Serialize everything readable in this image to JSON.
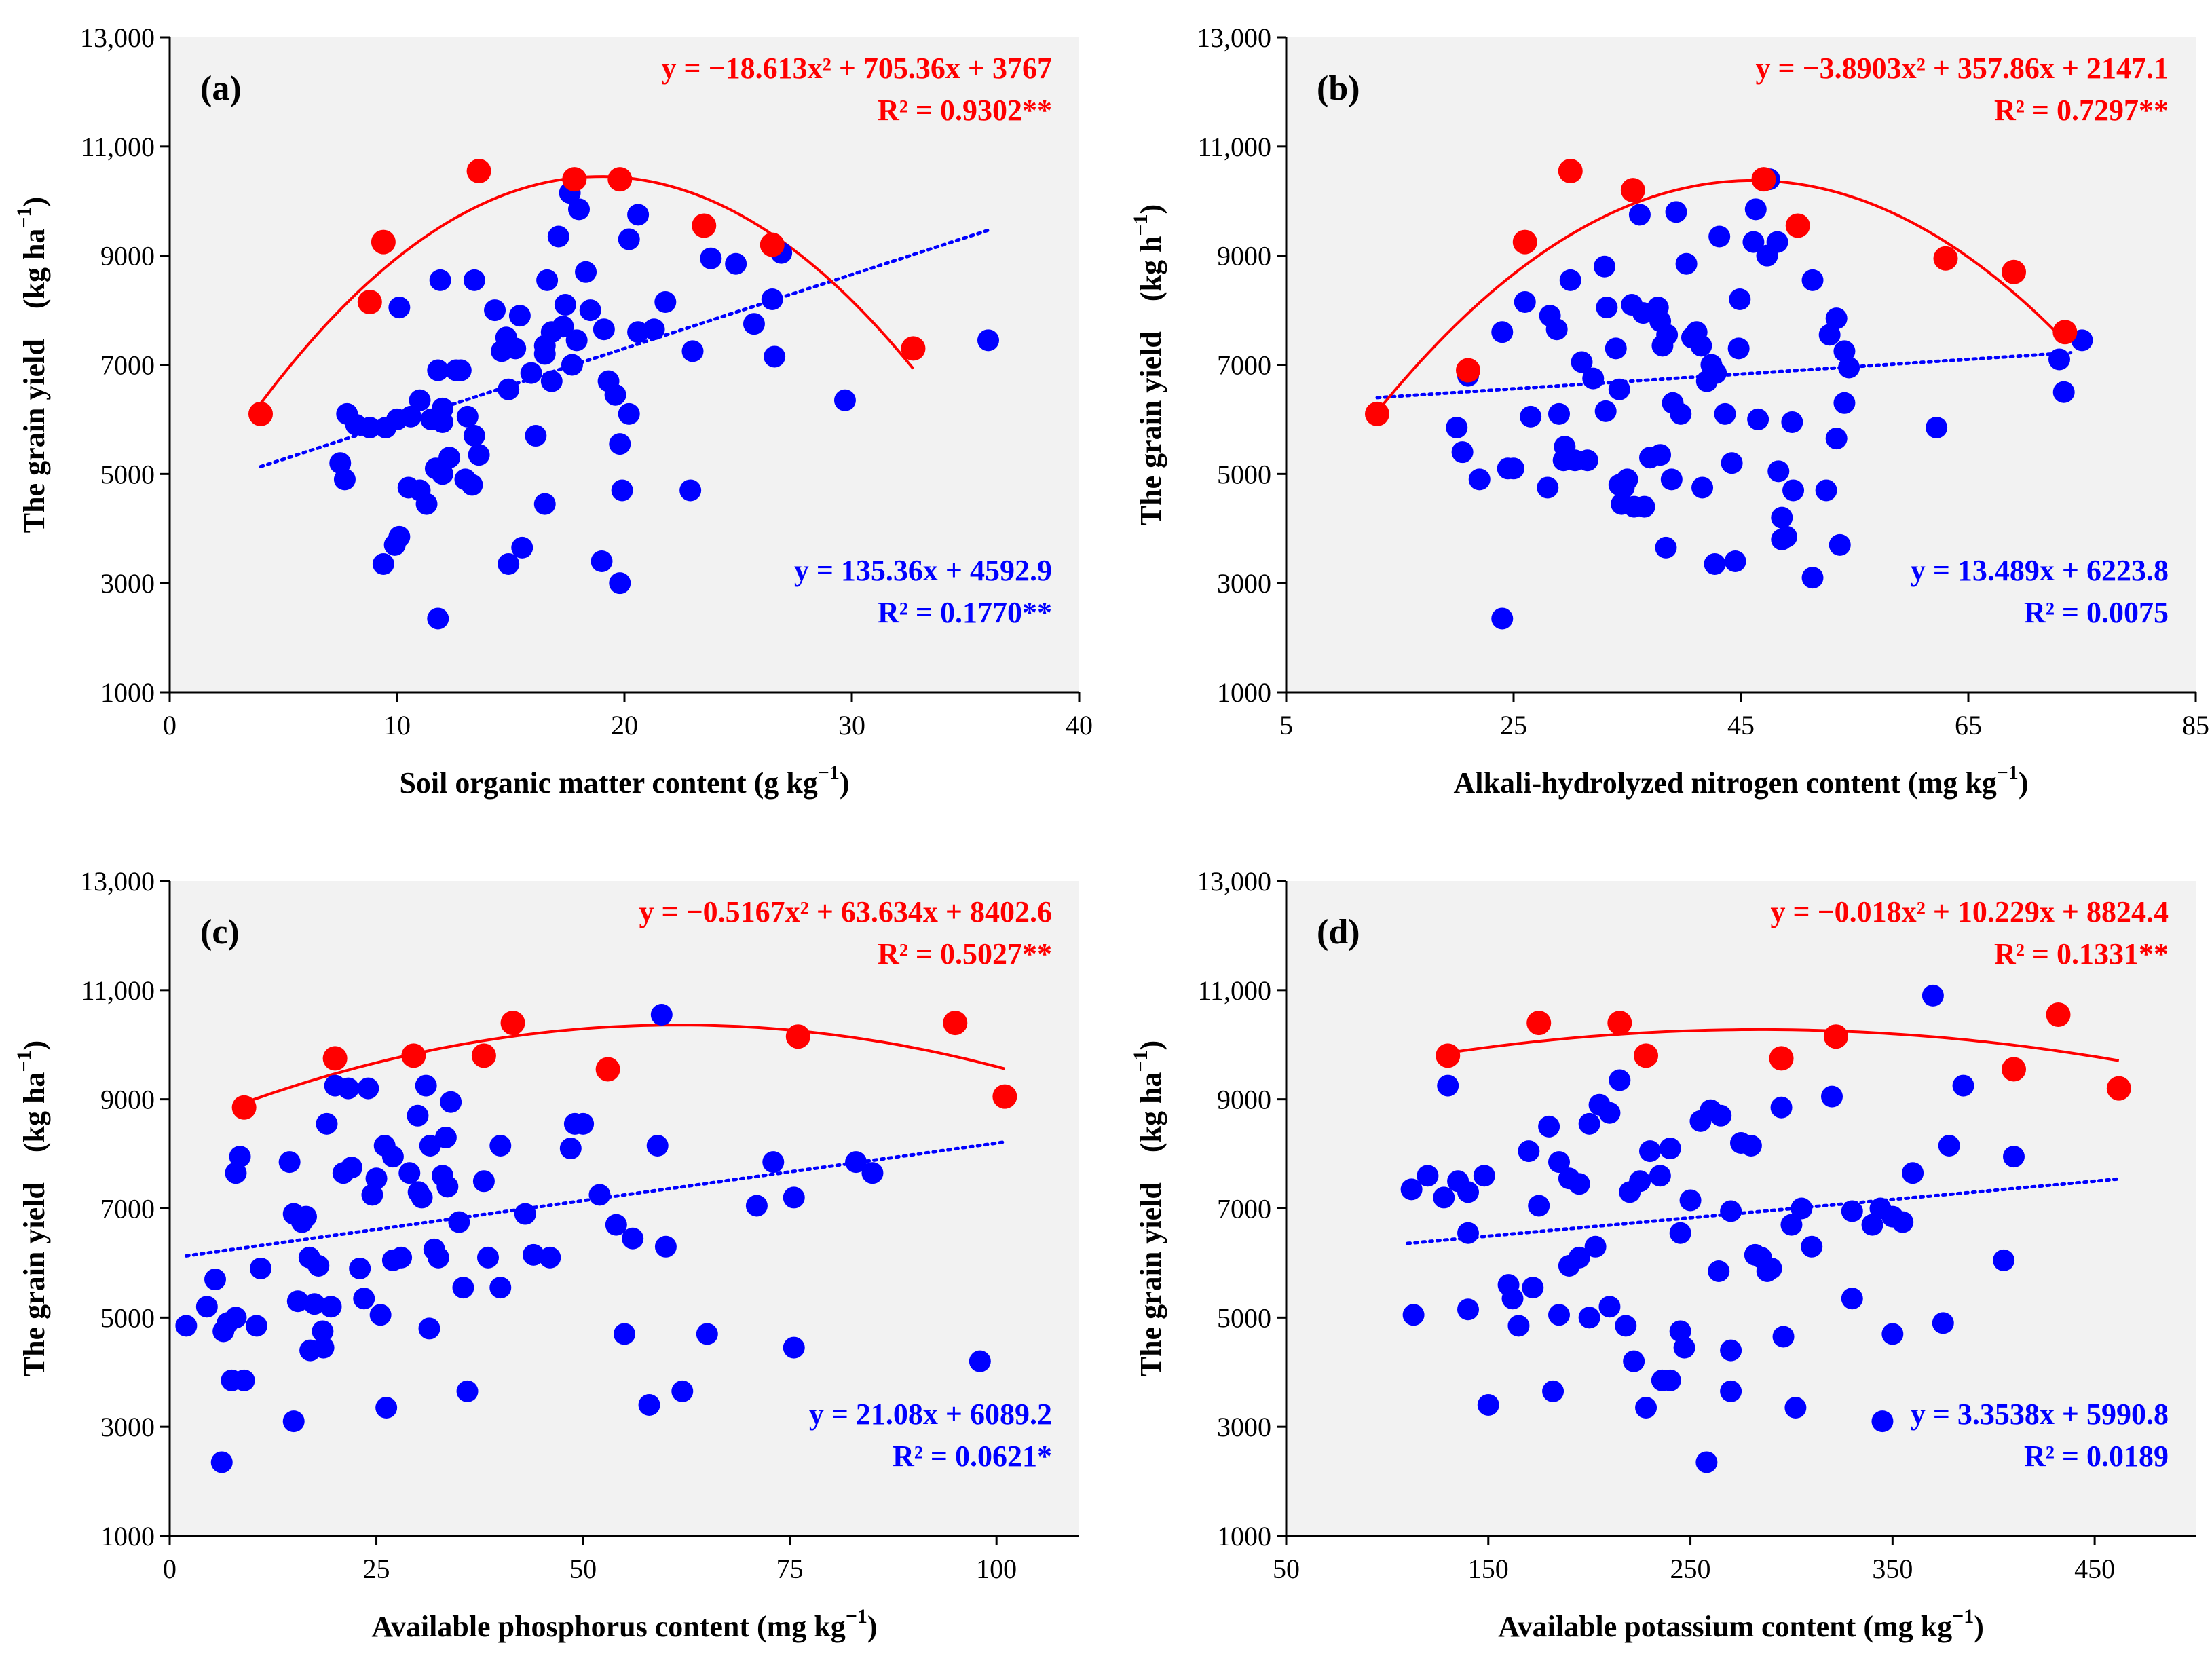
{
  "colors": {
    "quadratic": "#ff0000",
    "linear": "#0000ff",
    "panel_bg": "#f2f2f2"
  },
  "chart_data": [
    {
      "type": "scatter",
      "panel": "(a)",
      "xlabel_main": "Soil organic matter content (g kg",
      "xlabel_sup": "−1",
      "xlabel_end": ")",
      "ylabel_main": "The grain yield　(kg ha",
      "ylabel_sup": "−1",
      "ylabel_end": ")",
      "xlim": [
        0,
        40
      ],
      "ylim": [
        1000,
        13000
      ],
      "xticks": [
        0,
        10,
        20,
        30,
        40
      ],
      "xtick_labels": [
        "0",
        "10",
        "20",
        "30",
        "40"
      ],
      "yticks": [
        1000,
        3000,
        5000,
        7000,
        9000,
        11000,
        13000
      ],
      "ytick_labels": [
        "1000",
        "3000",
        "5000",
        "7000",
        "9000",
        "11,000",
        "13,000"
      ],
      "quad_eq": "y = −18.613x² + 705.36x + 3767",
      "quad_r2": "R² = 0.9302**",
      "lin_eq": "y = 135.36x + 4592.9",
      "lin_r2": "R² = 0.1770**",
      "quad_coef": [
        -18.613,
        705.36,
        3767
      ],
      "quad_range": [
        4,
        32.7
      ],
      "lin_coef": [
        135.36,
        4592.9
      ],
      "lin_range": [
        4,
        36
      ],
      "series_max": {
        "x": [
          4,
          8.8,
          9.4,
          13.6,
          17.8,
          19.8,
          23.5,
          26.5,
          32.7
        ],
        "y": [
          6100,
          8150,
          9250,
          10550,
          10400,
          10400,
          9550,
          9200,
          7300
        ]
      },
      "series_all": {
        "x": [
          7.8,
          8.2,
          8.8,
          9.5,
          10.0,
          10.6,
          11.0,
          11.5,
          12.0,
          7.5,
          7.7,
          9.4,
          9.9,
          10.1,
          10.5,
          11.0,
          11.3,
          11.7,
          12.0,
          12.3,
          12.6,
          12.8,
          13.1,
          13.4,
          13.6,
          11.9,
          11.8,
          12.0,
          13.0,
          13.3,
          14.3,
          14.6,
          14.8,
          14.9,
          15.2,
          15.4,
          15.9,
          16.1,
          16.5,
          16.6,
          16.8,
          17.1,
          17.3,
          17.4,
          17.7,
          17.9,
          18.3,
          18.5,
          19.1,
          19.3,
          19.6,
          19.8,
          19.9,
          20.2,
          20.6,
          14.9,
          15.5,
          16.5,
          19.0,
          19.8,
          16.8,
          20.6,
          21.3,
          21.8,
          23.0,
          23.8,
          24.9,
          25.7,
          26.5,
          26.6,
          26.9,
          29.7,
          36.0,
          22.9,
          11.8,
          18.0,
          17.6,
          16.5,
          20.2,
          10.1,
          13.4
        ],
        "y": [
          6100,
          5900,
          5850,
          5850,
          6000,
          6050,
          6350,
          6000,
          6200,
          5200,
          4900,
          3350,
          3700,
          3850,
          4750,
          4700,
          4450,
          5100,
          5000,
          5300,
          6900,
          6900,
          6050,
          5700,
          5350,
          8550,
          6900,
          5950,
          4900,
          4800,
          8000,
          7250,
          7500,
          6550,
          7300,
          7900,
          6850,
          5700,
          7350,
          8550,
          7600,
          9350,
          7700,
          8100,
          7000,
          7450,
          8700,
          8000,
          7650,
          6700,
          6450,
          5550,
          4700,
          9300,
          9750,
          3350,
          3650,
          4450,
          3400,
          3000,
          6700,
          7600,
          7650,
          8150,
          7250,
          8950,
          8850,
          7750,
          8200,
          7150,
          9050,
          6350,
          7450,
          4700,
          2350,
          9850,
          10150,
          7200,
          6100,
          8050,
          8550
        ]
      }
    },
    {
      "type": "scatter",
      "panel": "(b)",
      "xlabel_main": "Alkali-hydrolyzed nitrogen content (mg kg",
      "xlabel_sup": "−1",
      "xlabel_end": ")",
      "ylabel_main": "The grain yield　(kg h",
      "ylabel_sup": "−1",
      "ylabel_end": ")",
      "xlim": [
        5,
        85
      ],
      "ylim": [
        1000,
        13000
      ],
      "xticks": [
        5,
        25,
        45,
        65,
        85
      ],
      "xtick_labels": [
        "5",
        "25",
        "45",
        "65",
        "85"
      ],
      "yticks": [
        1000,
        3000,
        5000,
        7000,
        9000,
        11000,
        13000
      ],
      "ytick_labels": [
        "1000",
        "3000",
        "5000",
        "7000",
        "9000",
        "11,000",
        "13,000"
      ],
      "quad_eq": "y = −3.8903x² + 357.86x + 2147.1",
      "quad_r2": "R² = 0.7297**",
      "lin_eq": "y = 13.489x + 6223.8",
      "lin_r2": "R² = 0.0075",
      "quad_coef": [
        -3.8903,
        357.86,
        2147.1
      ],
      "quad_range": [
        13,
        73.5
      ],
      "lin_coef": [
        13.489,
        6223.8
      ],
      "lin_range": [
        13,
        74
      ],
      "series_max": {
        "x": [
          13,
          21,
          26,
          30,
          35.5,
          47,
          50,
          63,
          69,
          73.5
        ],
        "y": [
          6100,
          6900,
          9250,
          10550,
          10200,
          10400,
          9550,
          8950,
          8700,
          7600
        ]
      },
      "series_all": {
        "x": [
          21,
          25,
          26,
          28,
          29,
          29.5,
          30,
          31,
          31.5,
          32,
          33,
          33.2,
          34,
          34.3,
          34.7,
          35.4,
          35.6,
          36.1,
          36.4,
          37.0,
          37.7,
          37.9,
          38.1,
          38.5,
          39.0,
          39.3,
          39.7,
          40.2,
          40.7,
          41.1,
          41.5,
          42.0,
          42.4,
          42.8,
          43.1,
          43.6,
          44.2,
          44.8,
          46.1,
          46.5,
          47.3,
          48.3,
          48.6,
          49.0,
          49.5,
          51.3,
          52.5,
          53.4,
          54.1,
          54.5,
          62.2,
          73.0,
          73.4,
          75,
          20,
          20.5,
          22,
          24,
          24.5,
          26.5,
          28.2,
          28.8,
          29.4,
          30.4,
          33.1,
          34.3,
          34.5,
          35.0,
          36.5,
          37.9,
          38.4,
          38.9,
          41.6,
          42.7,
          44.5,
          44.9,
          46.3,
          47.5,
          48.2,
          48.6,
          49.6,
          51.3,
          52.8,
          53.4,
          53.7,
          54.1,
          24.0
        ],
        "y": [
          6800,
          5100,
          8150,
          4750,
          6100,
          5500,
          8550,
          7050,
          5250,
          6750,
          8800,
          8050,
          7300,
          6550,
          4750,
          8100,
          4400,
          9750,
          7950,
          5300,
          8050,
          7800,
          7350,
          7550,
          6300,
          9800,
          6100,
          8850,
          7500,
          7600,
          7350,
          6700,
          7000,
          6850,
          9350,
          6100,
          5200,
          7300,
          9250,
          6000,
          9000,
          5050,
          3800,
          3850,
          5950,
          3100,
          4700,
          5650,
          7250,
          6950,
          5850,
          7100,
          6500,
          7450,
          5850,
          5400,
          4900,
          7600,
          5100,
          6050,
          7900,
          7650,
          5250,
          5250,
          6150,
          4800,
          4450,
          4900,
          4400,
          5350,
          3650,
          4900,
          4750,
          3350,
          3400,
          8200,
          9850,
          10400,
          9250,
          4200,
          4700,
          8550,
          7550,
          7850,
          3700,
          6300,
          2350
        ],
        "note": "approx readings"
      }
    },
    {
      "type": "scatter",
      "panel": "(c)",
      "xlabel_main": "Available phosphorus content (mg kg",
      "xlabel_sup": "−1",
      "xlabel_end": ")",
      "ylabel_main": "The grain yield　(kg ha",
      "ylabel_sup": "−1",
      "ylabel_end": ")",
      "xlim": [
        0,
        110
      ],
      "ylim": [
        1000,
        13000
      ],
      "xticks": [
        0,
        25,
        50,
        75,
        100
      ],
      "xtick_labels": [
        "0",
        "25",
        "50",
        "75",
        "100"
      ],
      "yticks": [
        1000,
        3000,
        5000,
        7000,
        9000,
        11000,
        13000
      ],
      "ytick_labels": [
        "1000",
        "3000",
        "5000",
        "7000",
        "9000",
        "11,000",
        "13,000"
      ],
      "quad_eq": "y = −0.5167x² + 63.634x + 8402.6",
      "quad_r2": "R² = 0.5027**",
      "lin_eq": "y = 21.08x + 6089.2",
      "lin_r2": "R² = 0.0621*",
      "quad_coef": [
        -0.5167,
        63.634,
        8402.6
      ],
      "quad_range": [
        9,
        101
      ],
      "lin_coef": [
        21.08,
        6089.2
      ],
      "lin_range": [
        2,
        101
      ],
      "series_max": {
        "x": [
          9,
          20,
          29.5,
          38,
          41.5,
          53,
          76,
          95,
          101
        ],
        "y": [
          8850,
          9750,
          9800,
          9800,
          10400,
          9550,
          10150,
          10400,
          9050
        ]
      },
      "series_all": {
        "x": [
          2,
          4.5,
          5.5,
          6.5,
          7,
          7.5,
          8,
          8.5,
          9,
          10.5,
          11,
          14.5,
          15,
          15.5,
          16,
          16.5,
          17,
          17.5,
          18,
          18.5,
          19,
          19.5,
          20,
          21,
          22,
          23,
          24,
          24.5,
          25,
          25.5,
          26,
          27,
          28,
          29,
          30,
          30.5,
          31,
          31.5,
          32,
          32.5,
          33,
          34,
          35,
          35.5,
          36,
          38,
          38.5,
          40,
          40,
          43,
          44,
          46,
          48.5,
          49,
          50,
          52,
          54,
          55,
          56,
          58,
          59,
          59.5,
          60,
          62,
          65,
          71,
          73,
          75.5,
          75.5,
          83,
          85,
          98,
          6.3,
          8,
          15,
          26.2,
          27,
          31.4,
          23.5,
          30.1,
          33.4,
          33.6,
          16.9,
          21.6,
          18.6
        ],
        "y": [
          4850,
          5200,
          5700,
          4750,
          4900,
          3850,
          5000,
          7950,
          3850,
          4850,
          5900,
          7850,
          6900,
          5300,
          6750,
          6850,
          4400,
          5250,
          5950,
          4750,
          8550,
          5200,
          9250,
          7650,
          7750,
          5900,
          9200,
          7250,
          7550,
          5050,
          8150,
          6050,
          6100,
          7650,
          8700,
          7200,
          9250,
          8150,
          6250,
          6100,
          7600,
          8950,
          6750,
          5550,
          3650,
          7500,
          6100,
          8150,
          5550,
          6900,
          6150,
          6100,
          8100,
          8550,
          8550,
          7250,
          6700,
          4700,
          6450,
          3400,
          8150,
          10550,
          6300,
          3650,
          4700,
          7050,
          7850,
          7200,
          4450,
          7850,
          7650,
          4200,
          2350,
          7650,
          3100,
          3350,
          7950,
          4800,
          5350,
          7300,
          8300,
          7400,
          6100,
          9200,
          4450
        ]
      }
    },
    {
      "type": "scatter",
      "panel": "(d)",
      "xlabel_main": "Available potassium content (mg kg",
      "xlabel_sup": "−1",
      "xlabel_end": ")",
      "ylabel_main": "The grain yield　(kg ha",
      "ylabel_sup": "−1",
      "ylabel_end": ")",
      "xlim": [
        50,
        500
      ],
      "ylim": [
        1000,
        13000
      ],
      "xticks": [
        50,
        150,
        250,
        350,
        450
      ],
      "xtick_labels": [
        "50",
        "150",
        "250",
        "350",
        "450"
      ],
      "yticks": [
        1000,
        3000,
        5000,
        7000,
        9000,
        11000,
        13000
      ],
      "ytick_labels": [
        "1000",
        "3000",
        "5000",
        "7000",
        "9000",
        "11,000",
        "13,000"
      ],
      "quad_eq": "y = −0.018x² + 10.229x + 8824.4",
      "quad_r2": "R² = 0.1331**",
      "lin_eq": "y = 3.3538x + 5990.8",
      "lin_r2": "R² = 0.0189",
      "quad_coef": [
        -0.018,
        10.229,
        8824.4
      ],
      "quad_range": [
        130,
        462
      ],
      "lin_coef": [
        3.3538,
        5990.8
      ],
      "lin_range": [
        110,
        462
      ],
      "series_max": {
        "x": [
          130,
          175,
          215,
          228,
          295,
          322,
          410,
          432,
          462
        ],
        "y": [
          9800,
          10400,
          10400,
          9800,
          9750,
          10150,
          9550,
          10550,
          9200
        ]
      },
      "series_all": {
        "x": [
          112,
          120,
          128,
          135,
          140,
          148,
          160,
          170,
          175,
          180,
          185,
          190,
          195,
          200,
          205,
          210,
          215,
          220,
          225,
          230,
          235,
          240,
          245,
          250,
          255,
          260,
          265,
          270,
          275,
          280,
          285,
          290,
          295,
          300,
          305,
          310,
          320,
          330,
          340,
          345,
          350,
          355,
          360,
          370,
          385,
          405,
          410,
          113,
          130,
          140,
          150,
          162,
          165,
          172,
          182,
          185,
          190,
          195,
          203,
          210,
          218,
          222,
          228,
          236,
          240,
          247,
          258,
          264,
          270,
          282,
          288,
          296,
          302,
          330,
          344,
          350,
          375,
          378,
          140,
          200,
          245,
          270
        ],
        "y": [
          7350,
          7600,
          7200,
          7500,
          7300,
          7600,
          5600,
          8050,
          7050,
          8500,
          7850,
          7550,
          7450,
          8550,
          8900,
          8750,
          9350,
          7300,
          7500,
          8050,
          7600,
          8100,
          6550,
          7150,
          8600,
          8800,
          8700,
          6950,
          8200,
          8150,
          6100,
          5900,
          8850,
          6700,
          7000,
          6300,
          9050,
          6950,
          6700,
          3100,
          6850,
          6750,
          7650,
          10900,
          9250,
          6050,
          7950,
          5050,
          9250,
          5150,
          3400,
          5350,
          4850,
          5550,
          3650,
          5050,
          5950,
          6100,
          6300,
          5200,
          4850,
          4200,
          3350,
          3850,
          3850,
          4450,
          2350,
          5850,
          4400,
          6150,
          5850,
          4650,
          3350,
          5350,
          7000,
          4700,
          4900,
          8150,
          6550,
          5000,
          4750,
          3650
        ]
      }
    }
  ]
}
